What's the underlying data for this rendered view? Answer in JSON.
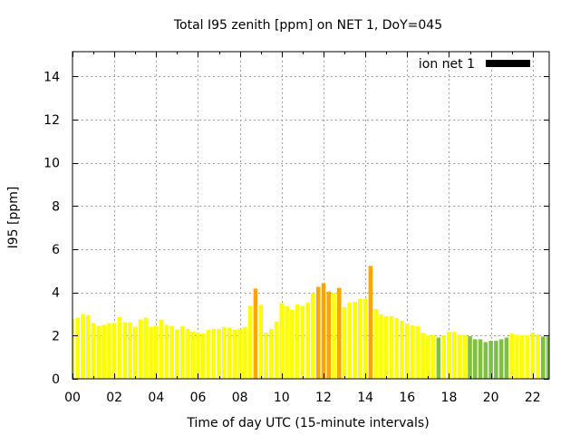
{
  "chart_data": {
    "type": "bar",
    "title": "Total I95 zenith [ppm] on NET 1, DoY=045",
    "xlabel": "Time of day UTC (15-minute intervals)",
    "ylabel": "I95 [ppm]",
    "xlim": [
      0,
      22.79
    ],
    "ylim": [
      0,
      15.15
    ],
    "grid": true,
    "x_ticks": [
      0,
      2,
      4,
      6,
      8,
      10,
      12,
      14,
      16,
      18,
      20,
      22
    ],
    "x_tick_labels": [
      "00",
      "02",
      "04",
      "06",
      "08",
      "10",
      "12",
      "14",
      "16",
      "18",
      "20",
      "22"
    ],
    "y_ticks": [
      0,
      2,
      4,
      6,
      8,
      10,
      12,
      14
    ],
    "y_tick_labels": [
      "0",
      "2",
      "4",
      "6",
      "8",
      "10",
      "12",
      "14"
    ],
    "legend": {
      "label": "ion net 1",
      "color": "#000000",
      "placement": "top-right"
    },
    "bar_interval_hours": 0.25,
    "color_thresholds": {
      "green_below": 2,
      "orange_at_or_above": 4
    },
    "colors": {
      "low": "#80c040",
      "mid": "#ffff00",
      "high": "#ffa500"
    },
    "series": [
      {
        "name": "ion net 1",
        "values": [
          2.76,
          2.83,
          3.0,
          2.95,
          2.58,
          2.45,
          2.49,
          2.58,
          2.58,
          2.87,
          2.62,
          2.62,
          2.41,
          2.74,
          2.83,
          2.41,
          2.45,
          2.74,
          2.49,
          2.45,
          2.28,
          2.44,
          2.31,
          2.18,
          2.14,
          2.1,
          2.27,
          2.31,
          2.31,
          2.4,
          2.36,
          2.27,
          2.31,
          2.4,
          3.37,
          4.18,
          3.42,
          2.14,
          2.31,
          2.65,
          3.5,
          3.36,
          3.19,
          3.45,
          3.36,
          3.53,
          3.96,
          4.26,
          4.43,
          4.04,
          3.98,
          4.21,
          3.32,
          3.53,
          3.57,
          3.7,
          3.7,
          5.23,
          3.23,
          2.98,
          2.9,
          2.9,
          2.81,
          2.68,
          2.56,
          2.47,
          2.43,
          2.13,
          2.01,
          2.01,
          1.91,
          2.01,
          2.17,
          2.17,
          2.04,
          2.01,
          1.98,
          1.83,
          1.83,
          1.7,
          1.76,
          1.76,
          1.83,
          1.91,
          2.09,
          2.04,
          2.01,
          2.01,
          2.13,
          2.04,
          1.96,
          1.96
        ]
      }
    ]
  }
}
